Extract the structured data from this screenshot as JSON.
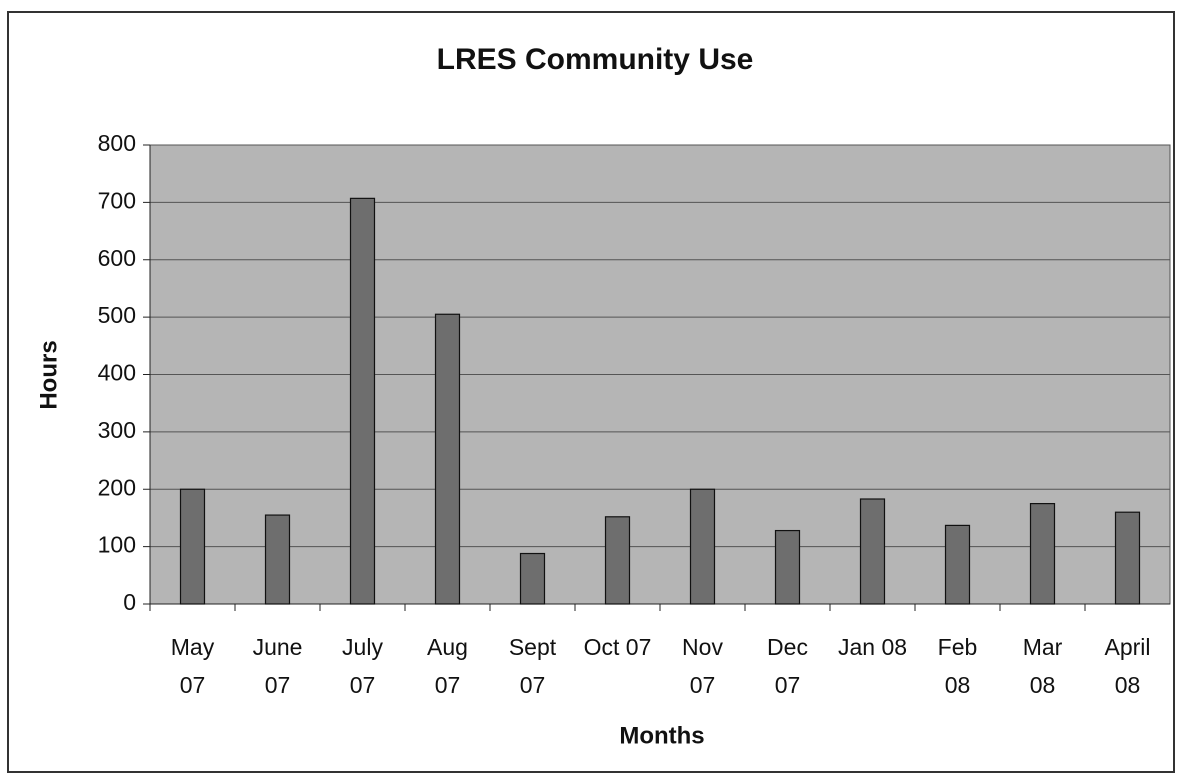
{
  "chart_data": {
    "type": "bar",
    "title": "LRES Community Use",
    "x_label": "Months",
    "y_label": "Hours",
    "categories": [
      "May 07",
      "June 07",
      "July 07",
      "Aug 07",
      "Sept 07",
      "Oct 07",
      "Nov 07",
      "Dec 07",
      "Jan 08",
      "Feb 08",
      "Mar 08",
      "April 08"
    ],
    "values": [
      200,
      155,
      707,
      505,
      88,
      152,
      200,
      128,
      183,
      137,
      175,
      160
    ],
    "color": "#6e6e6e",
    "ylim": [
      0,
      800
    ],
    "yticks": [
      0,
      100,
      200,
      300,
      400,
      500,
      600,
      700,
      800
    ],
    "grid": true
  }
}
